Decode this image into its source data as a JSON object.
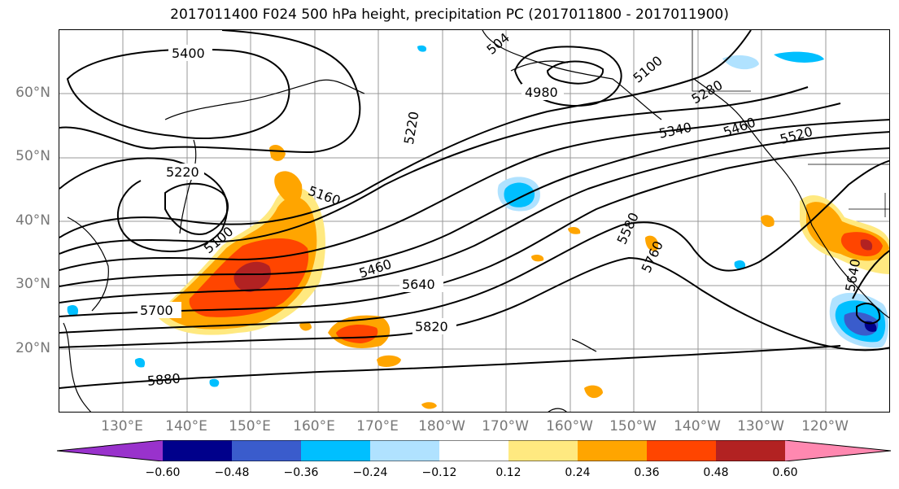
{
  "title": "2017011400 F024 500 hPa height, precipitation PC (2017011800 - 2017011900)",
  "lat_labels": [
    "60°N",
    "50°N",
    "40°N",
    "30°N",
    "20°N"
  ],
  "lon_labels": [
    "130°E",
    "140°E",
    "150°E",
    "160°E",
    "170°E",
    "180°W",
    "170°W",
    "160°W",
    "150°W",
    "140°W",
    "130°W",
    "120°W"
  ],
  "contour_labels": [
    "5400",
    "504",
    "4980",
    "5100",
    "5220",
    "5280",
    "5340",
    "5460",
    "5520",
    "5220",
    "5160",
    "5100",
    "5460",
    "5640",
    "5580",
    "5760",
    "5700",
    "5820",
    "5880",
    "5640"
  ],
  "colorbar": {
    "ticks": [
      "−0.60",
      "−0.48",
      "−0.36",
      "−0.24",
      "−0.12",
      "0.12",
      "0.24",
      "0.36",
      "0.48",
      "0.60"
    ],
    "colors": [
      "#9932cc",
      "#00008b",
      "#3a5ccc",
      "#00bfff",
      "#b0e2ff",
      "#ffffff",
      "#ffe980",
      "#ffa500",
      "#ff4500",
      "#b22222",
      "#ff88b0"
    ]
  }
}
